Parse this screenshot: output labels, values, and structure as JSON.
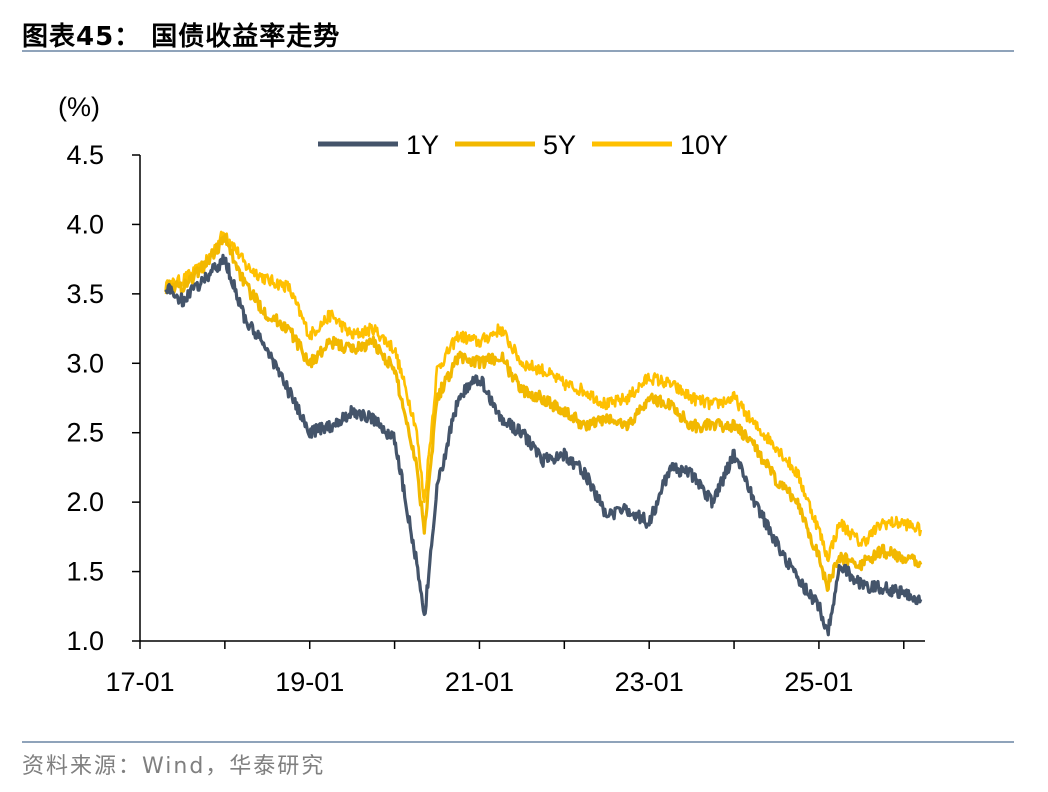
{
  "header": {
    "title": "图表45：   国债收益率走势"
  },
  "footer": {
    "source": "资料来源：Wind，华泰研究"
  },
  "colors": {
    "y1": "#44546A",
    "y5": "#F2B800",
    "y10": "#FFC000",
    "axis": "#000000",
    "rule": "#8FA3BA"
  },
  "chart_data": {
    "type": "line",
    "ylabel": "(%)",
    "ylim": [
      1.0,
      4.5
    ],
    "yticks": [
      "1.0",
      "1.5",
      "2.0",
      "2.5",
      "3.0",
      "3.5",
      "4.0",
      "4.5"
    ],
    "xlim": [
      2017.0,
      2026.25
    ],
    "xticks": [
      {
        "label": "17-01",
        "x": 2017.0
      },
      {
        "label": "19-01",
        "x": 2019.0
      },
      {
        "label": "21-01",
        "x": 2021.0
      },
      {
        "label": "23-01",
        "x": 2023.0
      },
      {
        "label": "25-01",
        "x": 2025.0
      }
    ],
    "legend": "top-center",
    "x": [
      2017.3,
      2017.5,
      2017.75,
      2018.0,
      2018.25,
      2018.5,
      2018.75,
      2019.0,
      2019.25,
      2019.5,
      2019.75,
      2020.0,
      2020.25,
      2020.35,
      2020.5,
      2020.75,
      2021.0,
      2021.25,
      2021.5,
      2021.75,
      2022.0,
      2022.25,
      2022.5,
      2022.75,
      2023.0,
      2023.25,
      2023.5,
      2023.75,
      2024.0,
      2024.25,
      2024.5,
      2024.75,
      2025.0,
      2025.1,
      2025.25,
      2025.5,
      2025.75,
      2026.0,
      2026.2
    ],
    "series": [
      {
        "name": "1Y",
        "values": [
          3.55,
          3.45,
          3.6,
          3.75,
          3.3,
          3.1,
          2.8,
          2.5,
          2.55,
          2.65,
          2.6,
          2.45,
          1.6,
          1.15,
          2.1,
          2.75,
          2.9,
          2.6,
          2.5,
          2.3,
          2.35,
          2.2,
          1.9,
          1.95,
          1.85,
          2.25,
          2.2,
          2.0,
          2.35,
          2.0,
          1.7,
          1.45,
          1.25,
          1.05,
          1.55,
          1.4,
          1.38,
          1.35,
          1.3
        ]
      },
      {
        "name": "5Y",
        "values": [
          3.55,
          3.55,
          3.7,
          3.9,
          3.55,
          3.35,
          3.25,
          3.0,
          3.15,
          3.1,
          3.15,
          2.95,
          2.3,
          1.8,
          2.75,
          3.05,
          3.0,
          3.05,
          2.8,
          2.75,
          2.65,
          2.55,
          2.6,
          2.55,
          2.75,
          2.7,
          2.55,
          2.55,
          2.55,
          2.4,
          2.15,
          2.0,
          1.6,
          1.4,
          1.6,
          1.55,
          1.65,
          1.6,
          1.55
        ]
      },
      {
        "name": "10Y",
        "values": [
          3.55,
          3.6,
          3.7,
          3.95,
          3.7,
          3.6,
          3.55,
          3.2,
          3.35,
          3.2,
          3.25,
          3.1,
          2.55,
          2.0,
          2.95,
          3.2,
          3.15,
          3.25,
          3.0,
          2.95,
          2.85,
          2.8,
          2.7,
          2.75,
          2.9,
          2.85,
          2.75,
          2.7,
          2.75,
          2.55,
          2.4,
          2.2,
          1.8,
          1.6,
          1.85,
          1.7,
          1.85,
          1.85,
          1.8
        ]
      }
    ]
  }
}
